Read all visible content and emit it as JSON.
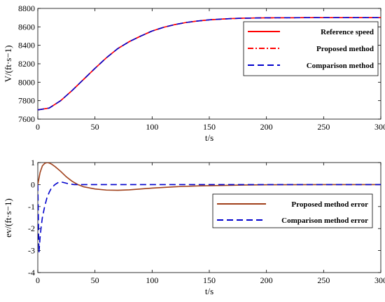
{
  "chart_data": [
    {
      "type": "line",
      "title": "",
      "xlabel": "t/s",
      "ylabel": "V/(ft·s−1)",
      "xlim": [
        0,
        300
      ],
      "ylim": [
        7600,
        8800
      ],
      "xticks": [
        "0",
        "50",
        "100",
        "150",
        "200",
        "250",
        "300"
      ],
      "yticks": [
        "7600",
        "7800",
        "8000",
        "8200",
        "8400",
        "8600",
        "8800"
      ],
      "grid": false,
      "legend_position": "center-right",
      "series": [
        {
          "name": "Reference speed",
          "color": "#ff0000",
          "style": "solid",
          "x": [
            0,
            10,
            20,
            30,
            40,
            50,
            60,
            70,
            80,
            90,
            100,
            110,
            120,
            130,
            140,
            150,
            160,
            170,
            180,
            190,
            200,
            220,
            240,
            260,
            280,
            300
          ],
          "y": [
            7700,
            7720,
            7800,
            7910,
            8030,
            8150,
            8265,
            8365,
            8440,
            8500,
            8555,
            8595,
            8625,
            8648,
            8664,
            8676,
            8684,
            8690,
            8694,
            8696,
            8698,
            8699,
            8700,
            8700,
            8700,
            8700
          ]
        },
        {
          "name": "Proposed method",
          "color": "#ff0000",
          "style": "dashdot",
          "x": [
            0,
            10,
            20,
            30,
            40,
            50,
            60,
            70,
            80,
            90,
            100,
            110,
            120,
            130,
            140,
            150,
            160,
            170,
            180,
            190,
            200,
            220,
            240,
            260,
            280,
            300
          ],
          "y": [
            7700,
            7720,
            7800,
            7910,
            8030,
            8150,
            8265,
            8365,
            8440,
            8500,
            8555,
            8595,
            8625,
            8648,
            8664,
            8676,
            8684,
            8690,
            8694,
            8696,
            8698,
            8699,
            8700,
            8700,
            8700,
            8700
          ]
        },
        {
          "name": "Comparison method",
          "color": "#0000cc",
          "style": "dashed",
          "x": [
            0,
            10,
            20,
            30,
            40,
            50,
            60,
            70,
            80,
            90,
            100,
            110,
            120,
            130,
            140,
            150,
            160,
            170,
            180,
            190,
            200,
            220,
            240,
            260,
            280,
            300
          ],
          "y": [
            7700,
            7720,
            7800,
            7910,
            8030,
            8150,
            8265,
            8365,
            8440,
            8500,
            8555,
            8595,
            8625,
            8648,
            8664,
            8676,
            8684,
            8690,
            8694,
            8696,
            8698,
            8699,
            8700,
            8700,
            8700,
            8700
          ]
        }
      ]
    },
    {
      "type": "line",
      "title": "",
      "xlabel": "t/s",
      "ylabel": "ev/(ft·s−1)",
      "xlim": [
        0,
        300
      ],
      "ylim": [
        -4,
        1
      ],
      "xticks": [
        "0",
        "50",
        "100",
        "150",
        "200",
        "250",
        "300"
      ],
      "yticks": [
        "-4",
        "-3",
        "-2",
        "-1",
        "0",
        "1"
      ],
      "grid": false,
      "legend_position": "center-right",
      "series": [
        {
          "name": "Proposed method error",
          "color": "#a0401a",
          "style": "solid",
          "x": [
            0,
            2,
            4,
            6,
            8,
            10,
            12,
            15,
            20,
            25,
            30,
            35,
            40,
            50,
            60,
            70,
            80,
            90,
            100,
            120,
            140,
            160,
            180,
            200,
            250,
            300
          ],
          "y": [
            0,
            0.55,
            0.85,
            0.96,
            1.0,
            0.98,
            0.93,
            0.82,
            0.6,
            0.35,
            0.15,
            0.0,
            -0.1,
            -0.2,
            -0.25,
            -0.26,
            -0.24,
            -0.2,
            -0.16,
            -0.1,
            -0.06,
            -0.04,
            -0.02,
            -0.01,
            0,
            0
          ]
        },
        {
          "name": "Comparison method error",
          "color": "#0000cc",
          "style": "dashed",
          "x": [
            0,
            1,
            2,
            3,
            4,
            6,
            8,
            10,
            12,
            15,
            18,
            20,
            22,
            25,
            28,
            32,
            40,
            60,
            100,
            200,
            300
          ],
          "y": [
            0,
            -3.1,
            -2.4,
            -1.9,
            -1.5,
            -1.0,
            -0.6,
            -0.35,
            -0.15,
            0.0,
            0.1,
            0.12,
            0.1,
            0.06,
            0.02,
            0.0,
            0,
            0,
            0,
            0,
            0
          ]
        }
      ]
    }
  ]
}
